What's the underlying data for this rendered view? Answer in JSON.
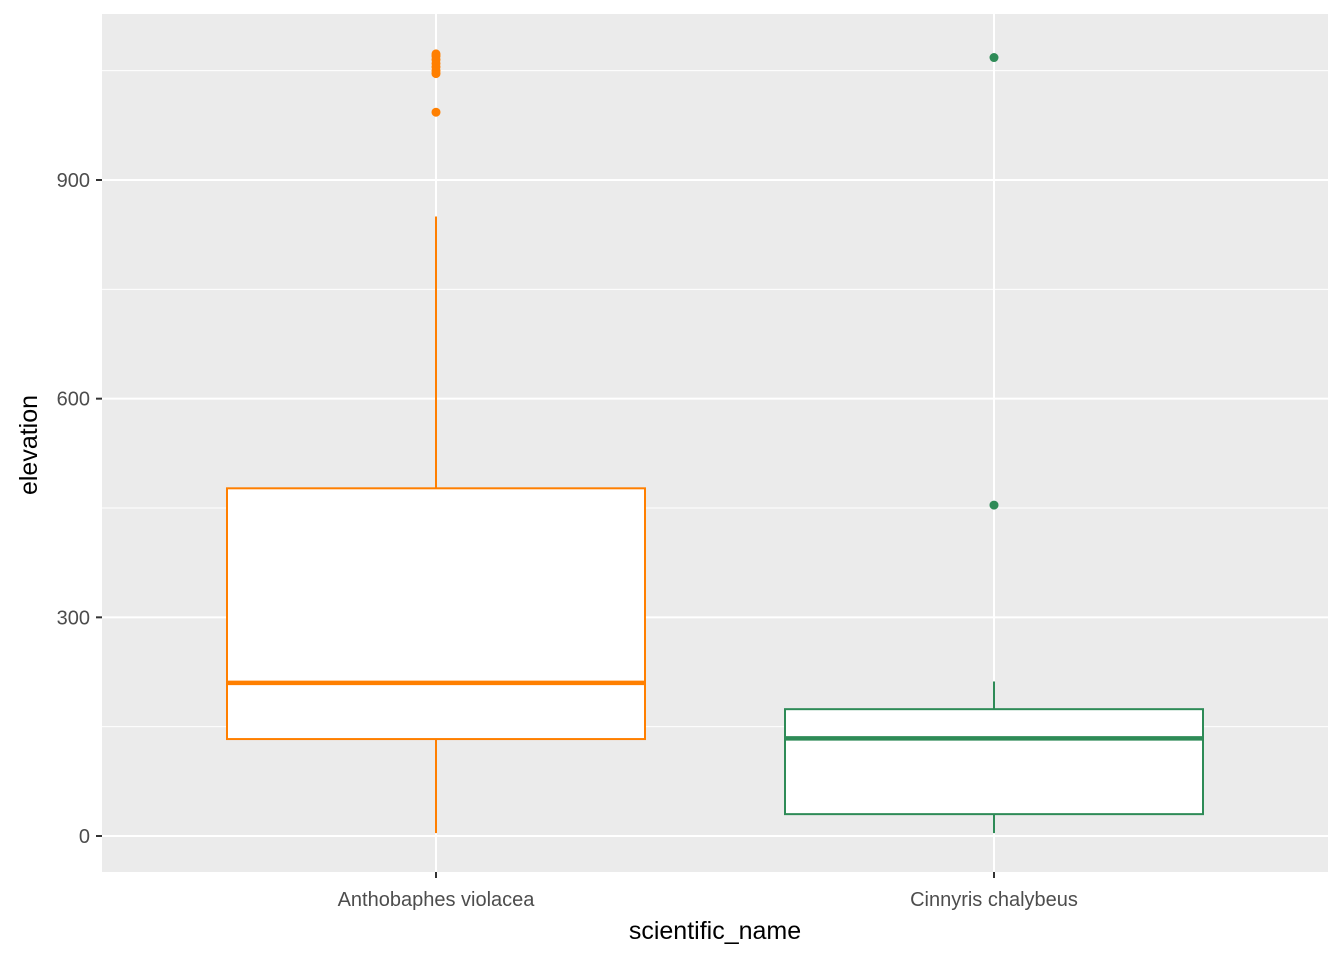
{
  "chart_data": {
    "type": "box",
    "title": "",
    "xlabel": "scientific_name",
    "ylabel": "elevation",
    "categories": [
      "Anthobaphes violacea",
      "Cinnyris chalybeus"
    ],
    "ylim": [
      -50,
      1100
    ],
    "yticks": [
      0,
      300,
      600,
      900
    ],
    "yticks_labels": [
      "0",
      "300",
      "600",
      "900"
    ],
    "grid": true,
    "legend": "none",
    "panel_background": "#ebebeb",
    "grid_color": "#ffffff",
    "series": [
      {
        "category": "Anthobaphes violacea",
        "color": "#ff7f00",
        "whisker_low": 4,
        "q1": 133,
        "median": 210,
        "q3": 477,
        "whisker_high": 850,
        "outliers": [
          993,
          1046,
          1050,
          1055,
          1060,
          1065,
          1070,
          1073
        ]
      },
      {
        "category": "Cinnyris chalybeus",
        "color": "#2e8b57",
        "whisker_low": 4,
        "q1": 30,
        "median": 134,
        "q3": 174,
        "whisker_high": 212,
        "outliers": [
          454,
          1068
        ]
      }
    ]
  }
}
